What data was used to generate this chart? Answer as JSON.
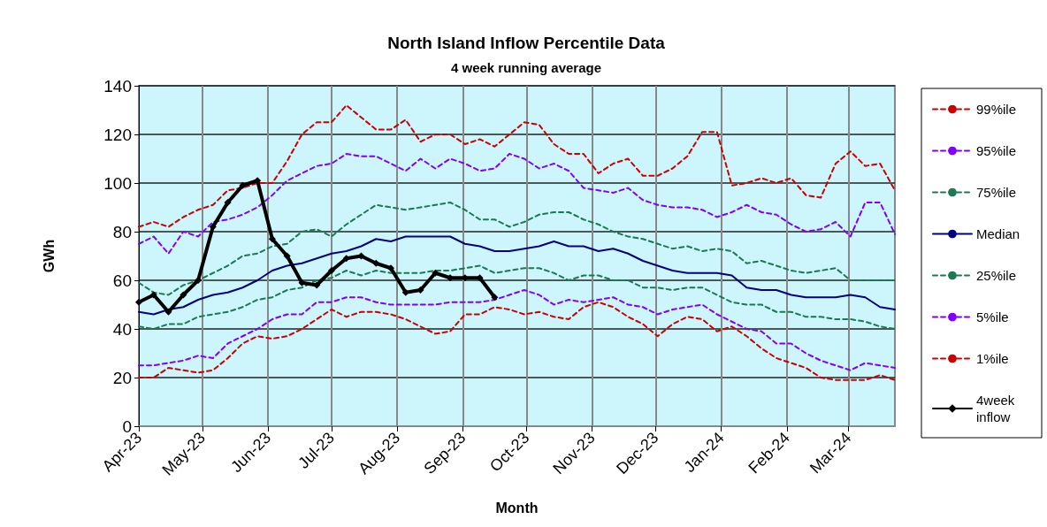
{
  "chart_data": {
    "type": "line",
    "title": "North Island Inflow Percentile Data",
    "subtitle": "4 week running average",
    "xlabel": "Month",
    "ylabel": "GWh",
    "x": [
      "2023-04-01",
      "2023-04-08",
      "2023-04-15",
      "2023-04-22",
      "2023-04-29",
      "2023-05-06",
      "2023-05-13",
      "2023-05-20",
      "2023-05-27",
      "2023-06-03",
      "2023-06-10",
      "2023-06-17",
      "2023-06-24",
      "2023-07-01",
      "2023-07-08",
      "2023-07-15",
      "2023-07-22",
      "2023-07-29",
      "2023-08-05",
      "2023-08-12",
      "2023-08-19",
      "2023-08-26",
      "2023-09-02",
      "2023-09-09",
      "2023-09-16",
      "2023-09-23",
      "2023-09-30",
      "2023-10-07",
      "2023-10-14",
      "2023-10-21",
      "2023-10-28",
      "2023-11-04",
      "2023-11-11",
      "2023-11-18",
      "2023-11-25",
      "2023-12-02",
      "2023-12-09",
      "2023-12-16",
      "2023-12-23",
      "2023-12-30",
      "2024-01-06",
      "2024-01-13",
      "2024-01-20",
      "2024-01-27",
      "2024-02-03",
      "2024-02-10",
      "2024-02-17",
      "2024-02-24",
      "2024-03-02",
      "2024-03-09",
      "2024-03-16",
      "2024-03-23"
    ],
    "series": [
      {
        "name": "99%ile",
        "color": "#cc0000",
        "line_style": "dashed",
        "marker": "none",
        "values": [
          82,
          84,
          82,
          86,
          89,
          91,
          97,
          98,
          100,
          100,
          109,
          120,
          125,
          125,
          132,
          127,
          122,
          122,
          126,
          117,
          120,
          120,
          116,
          118,
          115,
          120,
          125,
          124,
          116,
          112,
          112,
          104,
          108,
          110,
          103,
          103,
          106,
          111,
          121,
          121,
          99,
          100,
          102,
          100,
          102,
          95,
          94,
          108,
          113,
          107,
          108,
          97
        ]
      },
      {
        "name": "95%ile",
        "color": "#8000ff",
        "line_style": "dashed",
        "marker": "none",
        "values": [
          75,
          78,
          71,
          80,
          78,
          84,
          85,
          87,
          90,
          95,
          101,
          104,
          107,
          108,
          112,
          111,
          111,
          108,
          105,
          110,
          106,
          110,
          108,
          105,
          106,
          112,
          110,
          106,
          108,
          105,
          98,
          97,
          96,
          98,
          93,
          91,
          90,
          90,
          89,
          86,
          88,
          91,
          88,
          87,
          83,
          80,
          81,
          84,
          78,
          92,
          92,
          79
        ]
      },
      {
        "name": "75%ile",
        "color": "#1a7a50",
        "line_style": "dashed",
        "marker": "none",
        "values": [
          59,
          55,
          54,
          58,
          60,
          63,
          66,
          70,
          71,
          74,
          75,
          80,
          81,
          78,
          83,
          87,
          91,
          90,
          89,
          90,
          91,
          92,
          89,
          85,
          85,
          82,
          84,
          87,
          88,
          88,
          85,
          83,
          80,
          78,
          77,
          75,
          73,
          74,
          72,
          73,
          72,
          67,
          68,
          66,
          64,
          63,
          64,
          65,
          60,
          60,
          60,
          60
        ]
      },
      {
        "name": "Median",
        "color": "#000080",
        "line_style": "solid",
        "marker": "none",
        "values": [
          47,
          46,
          48,
          49,
          52,
          54,
          55,
          57,
          60,
          64,
          66,
          67,
          69,
          71,
          72,
          74,
          77,
          76,
          78,
          78,
          78,
          78,
          75,
          74,
          72,
          72,
          73,
          74,
          76,
          74,
          74,
          72,
          73,
          71,
          68,
          66,
          64,
          63,
          63,
          63,
          62,
          57,
          56,
          56,
          54,
          53,
          53,
          53,
          54,
          53,
          49,
          48
        ]
      },
      {
        "name": "25%ile",
        "color": "#1a7a50",
        "line_style": "dashed",
        "marker": "none",
        "values": [
          41,
          40,
          42,
          42,
          45,
          46,
          47,
          49,
          52,
          53,
          56,
          57,
          60,
          61,
          64,
          62,
          64,
          63,
          63,
          63,
          64,
          64,
          65,
          66,
          63,
          64,
          65,
          65,
          63,
          60,
          62,
          62,
          60,
          60,
          57,
          57,
          56,
          57,
          57,
          54,
          51,
          50,
          50,
          47,
          47,
          45,
          45,
          44,
          44,
          43,
          41,
          40
        ]
      },
      {
        "name": "5%ile",
        "color": "#8000ff",
        "line_style": "dashed",
        "marker": "none",
        "values": [
          25,
          25,
          26,
          27,
          29,
          28,
          34,
          37,
          40,
          44,
          46,
          46,
          51,
          51,
          53,
          53,
          51,
          50,
          50,
          50,
          50,
          51,
          51,
          51,
          52,
          54,
          56,
          54,
          50,
          52,
          51,
          52,
          53,
          50,
          49,
          46,
          48,
          49,
          50,
          46,
          43,
          40,
          39,
          34,
          34,
          30,
          27,
          25,
          23,
          26,
          25,
          24
        ]
      },
      {
        "name": "1%ile",
        "color": "#cc0000",
        "line_style": "dashed",
        "marker": "none",
        "values": [
          20,
          20,
          24,
          23,
          22,
          23,
          28,
          34,
          37,
          36,
          37,
          40,
          44,
          48,
          45,
          47,
          47,
          46,
          44,
          41,
          38,
          39,
          46,
          46,
          49,
          48,
          46,
          47,
          45,
          44,
          49,
          51,
          49,
          45,
          42,
          37,
          42,
          45,
          44,
          39,
          41,
          37,
          32,
          28,
          26,
          24,
          20,
          19,
          19,
          19,
          21,
          19
        ]
      },
      {
        "name": "4week inflow",
        "color": "#000000",
        "line_style": "solid",
        "marker": "diamond",
        "values": [
          51,
          54,
          47,
          54,
          60,
          82,
          92,
          99,
          101,
          77,
          70,
          59,
          58,
          64,
          69,
          70,
          67,
          65,
          55,
          56,
          63,
          61,
          61,
          61,
          53,
          null,
          null,
          null,
          null,
          null,
          null,
          null,
          null,
          null,
          null,
          null,
          null,
          null,
          null,
          null,
          null,
          null,
          null,
          null,
          null,
          null,
          null,
          null,
          null,
          null,
          null,
          null
        ]
      }
    ],
    "xlim": [
      "2023-04-01",
      "2024-03-23"
    ],
    "xticks": [
      {
        "value": "2023-04-01",
        "label": "Apr-23"
      },
      {
        "value": "2023-05-01",
        "label": "May-23"
      },
      {
        "value": "2023-06-01",
        "label": "Jun-23"
      },
      {
        "value": "2023-07-01",
        "label": "Jul-23"
      },
      {
        "value": "2023-08-01",
        "label": "Aug-23"
      },
      {
        "value": "2023-09-01",
        "label": "Sep-23"
      },
      {
        "value": "2023-10-01",
        "label": "Oct-23"
      },
      {
        "value": "2023-11-01",
        "label": "Nov-23"
      },
      {
        "value": "2023-12-01",
        "label": "Dec-23"
      },
      {
        "value": "2024-01-01",
        "label": "Jan-24"
      },
      {
        "value": "2024-02-01",
        "label": "Feb-24"
      },
      {
        "value": "2024-03-01",
        "label": "Mar-24"
      }
    ],
    "ylim": [
      0,
      140
    ],
    "yticks": [
      0,
      20,
      40,
      60,
      80,
      100,
      120,
      140
    ],
    "grid": true,
    "legend": "right"
  }
}
